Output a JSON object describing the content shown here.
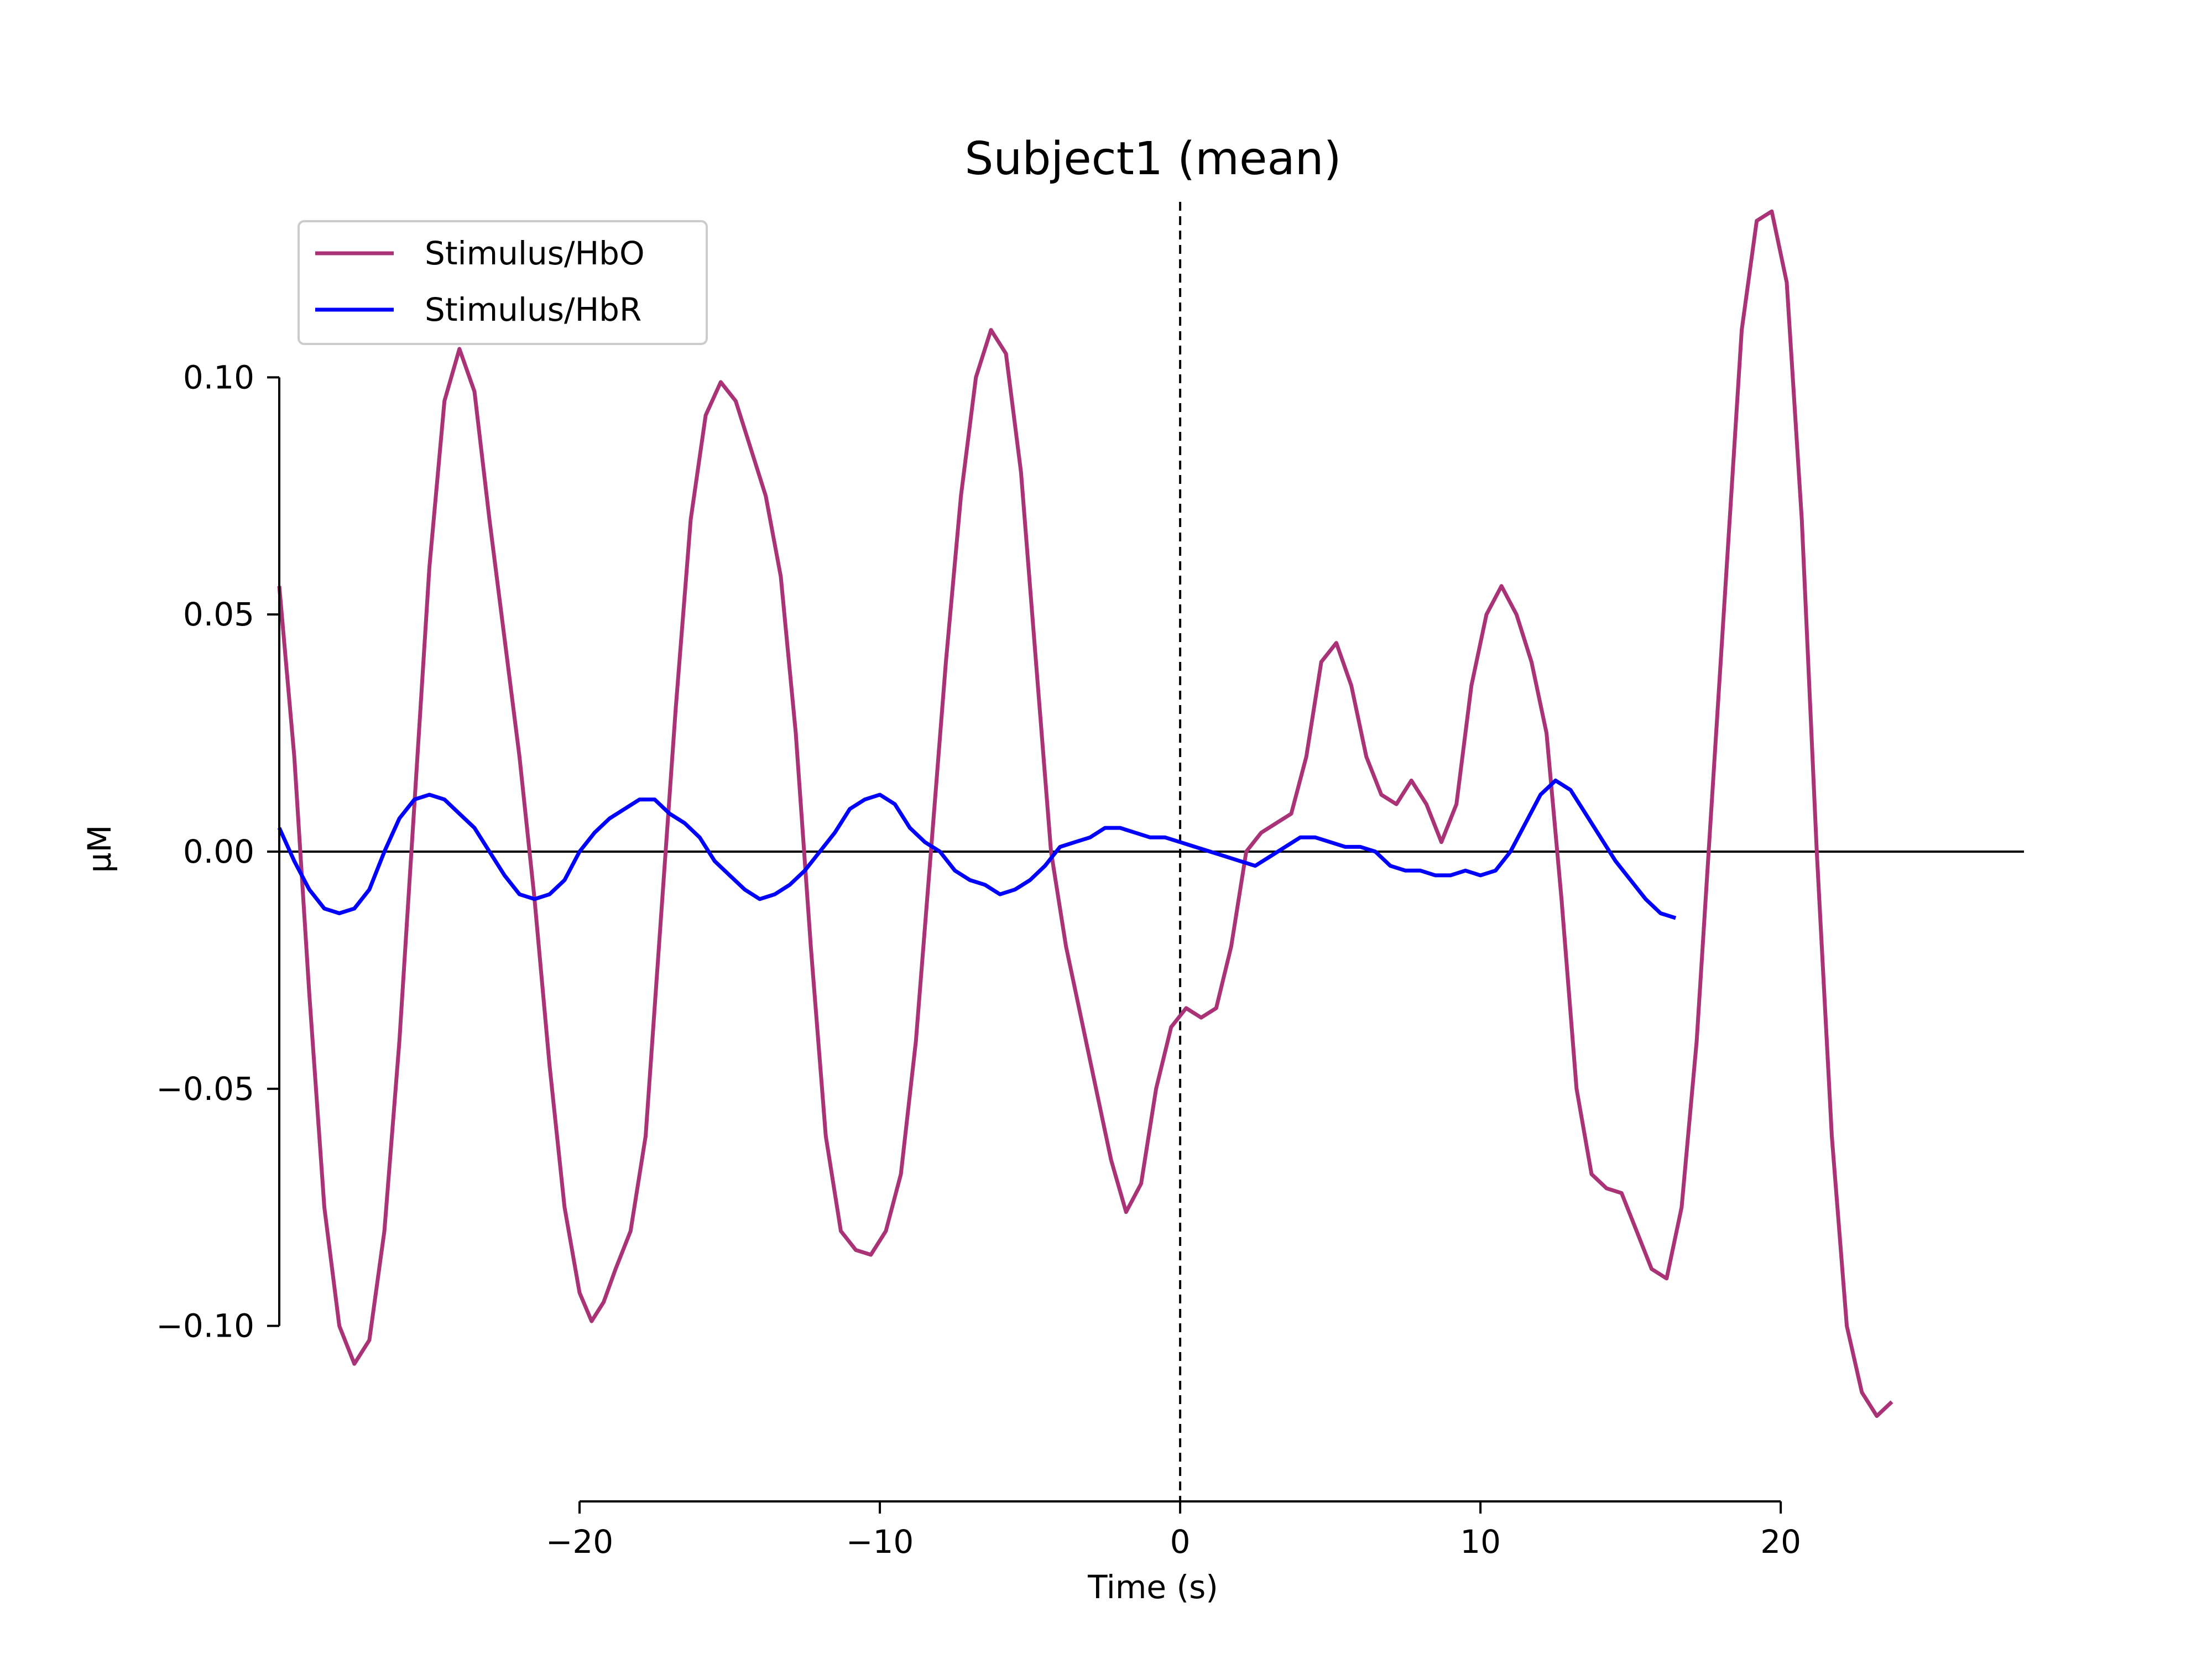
{
  "chart_data": {
    "type": "line",
    "title": "Subject1 (mean)",
    "xlabel": "Time (s)",
    "ylabel": "µM",
    "xlim": [
      -30,
      28.1
    ],
    "ylim": [
      -0.137,
      0.137
    ],
    "x_spine_range": [
      -20,
      20
    ],
    "y_spine_range": [
      -0.1,
      0.1
    ],
    "xticks": [
      {
        "value": -20,
        "label": "−20"
      },
      {
        "value": -10,
        "label": "−10"
      },
      {
        "value": 0,
        "label": "0"
      },
      {
        "value": 10,
        "label": "10"
      },
      {
        "value": 20,
        "label": "20"
      }
    ],
    "yticks": [
      {
        "value": 0.1,
        "label": "0.10"
      },
      {
        "value": 0.05,
        "label": "0.05"
      },
      {
        "value": 0.0,
        "label": "0.00"
      },
      {
        "value": -0.05,
        "label": "−0.05"
      },
      {
        "value": -0.1,
        "label": "−0.10"
      }
    ],
    "grid": false,
    "legend_position": "top-left",
    "reference_lines": {
      "horizontal_zero": true,
      "vertical_dashed_at_x": 0
    },
    "series": [
      {
        "name": "Stimulus/HbO",
        "color": "#aa3377",
        "points": [
          [
            -30.0,
            0.056
          ],
          [
            -29.5,
            0.02
          ],
          [
            -29.0,
            -0.03
          ],
          [
            -28.5,
            -0.075
          ],
          [
            -28.0,
            -0.1
          ],
          [
            -27.5,
            -0.108
          ],
          [
            -27.0,
            -0.103
          ],
          [
            -26.5,
            -0.08
          ],
          [
            -26.0,
            -0.04
          ],
          [
            -25.5,
            0.01
          ],
          [
            -25.0,
            0.06
          ],
          [
            -24.5,
            0.095
          ],
          [
            -24.0,
            0.106
          ],
          [
            -23.5,
            0.097
          ],
          [
            -23.0,
            0.07
          ],
          [
            -22.5,
            0.045
          ],
          [
            -22.0,
            0.02
          ],
          [
            -21.5,
            -0.01
          ],
          [
            -21.0,
            -0.045
          ],
          [
            -20.5,
            -0.075
          ],
          [
            -20.0,
            -0.093
          ],
          [
            -19.6,
            -0.099
          ],
          [
            -19.2,
            -0.095
          ],
          [
            -18.8,
            -0.088
          ],
          [
            -18.3,
            -0.08
          ],
          [
            -17.8,
            -0.06
          ],
          [
            -17.3,
            -0.015
          ],
          [
            -16.8,
            0.03
          ],
          [
            -16.3,
            0.07
          ],
          [
            -15.8,
            0.092
          ],
          [
            -15.3,
            0.099
          ],
          [
            -14.8,
            0.095
          ],
          [
            -14.3,
            0.085
          ],
          [
            -13.8,
            0.075
          ],
          [
            -13.3,
            0.058
          ],
          [
            -12.8,
            0.025
          ],
          [
            -12.3,
            -0.02
          ],
          [
            -11.8,
            -0.06
          ],
          [
            -11.3,
            -0.08
          ],
          [
            -10.8,
            -0.084
          ],
          [
            -10.3,
            -0.085
          ],
          [
            -9.8,
            -0.08
          ],
          [
            -9.3,
            -0.068
          ],
          [
            -8.8,
            -0.04
          ],
          [
            -8.3,
            0.0
          ],
          [
            -7.8,
            0.04
          ],
          [
            -7.3,
            0.075
          ],
          [
            -6.8,
            0.1
          ],
          [
            -6.3,
            0.11
          ],
          [
            -5.8,
            0.105
          ],
          [
            -5.3,
            0.08
          ],
          [
            -4.8,
            0.04
          ],
          [
            -4.3,
            0.0
          ],
          [
            -3.8,
            -0.02
          ],
          [
            -3.3,
            -0.035
          ],
          [
            -2.8,
            -0.05
          ],
          [
            -2.3,
            -0.065
          ],
          [
            -1.8,
            -0.076
          ],
          [
            -1.3,
            -0.07
          ],
          [
            -0.8,
            -0.05
          ],
          [
            -0.3,
            -0.037
          ],
          [
            0.2,
            -0.033
          ],
          [
            0.7,
            -0.035
          ],
          [
            1.2,
            -0.033
          ],
          [
            1.7,
            -0.02
          ],
          [
            2.2,
            0.0
          ],
          [
            2.7,
            0.004
          ],
          [
            3.2,
            0.006
          ],
          [
            3.7,
            0.008
          ],
          [
            4.2,
            0.02
          ],
          [
            4.7,
            0.04
          ],
          [
            5.2,
            0.044
          ],
          [
            5.7,
            0.035
          ],
          [
            6.2,
            0.02
          ],
          [
            6.7,
            0.012
          ],
          [
            7.2,
            0.01
          ],
          [
            7.7,
            0.015
          ],
          [
            8.2,
            0.01
          ],
          [
            8.7,
            0.002
          ],
          [
            9.2,
            0.01
          ],
          [
            9.7,
            0.035
          ],
          [
            10.2,
            0.05
          ],
          [
            10.7,
            0.056
          ],
          [
            11.2,
            0.05
          ],
          [
            11.7,
            0.04
          ],
          [
            12.2,
            0.025
          ],
          [
            12.7,
            -0.01
          ],
          [
            13.2,
            -0.05
          ],
          [
            13.7,
            -0.068
          ],
          [
            14.2,
            -0.071
          ],
          [
            14.7,
            -0.072
          ],
          [
            15.2,
            -0.08
          ],
          [
            15.7,
            -0.088
          ],
          [
            16.2,
            -0.09
          ],
          [
            16.7,
            -0.075
          ],
          [
            17.2,
            -0.04
          ],
          [
            17.7,
            0.01
          ],
          [
            18.2,
            0.06
          ],
          [
            18.7,
            0.11
          ],
          [
            19.2,
            0.133
          ],
          [
            19.7,
            0.135
          ],
          [
            20.2,
            0.12
          ],
          [
            20.7,
            0.07
          ],
          [
            21.2,
            0.0
          ],
          [
            21.7,
            -0.06
          ],
          [
            22.2,
            -0.1
          ],
          [
            22.7,
            -0.114
          ],
          [
            23.2,
            -0.119
          ],
          [
            23.7,
            -0.116
          ]
        ]
      },
      {
        "name": "Stimulus/HbR",
        "color": "#0000ff",
        "points": [
          [
            -30.0,
            0.005
          ],
          [
            -29.5,
            -0.002
          ],
          [
            -29.0,
            -0.008
          ],
          [
            -28.5,
            -0.012
          ],
          [
            -28.0,
            -0.013
          ],
          [
            -27.5,
            -0.012
          ],
          [
            -27.0,
            -0.008
          ],
          [
            -26.5,
            0.0
          ],
          [
            -26.0,
            0.007
          ],
          [
            -25.5,
            0.011
          ],
          [
            -25.0,
            0.012
          ],
          [
            -24.5,
            0.011
          ],
          [
            -24.0,
            0.008
          ],
          [
            -23.5,
            0.005
          ],
          [
            -23.0,
            0.0
          ],
          [
            -22.5,
            -0.005
          ],
          [
            -22.0,
            -0.009
          ],
          [
            -21.5,
            -0.01
          ],
          [
            -21.0,
            -0.009
          ],
          [
            -20.5,
            -0.006
          ],
          [
            -20.0,
            0.0
          ],
          [
            -19.5,
            0.004
          ],
          [
            -19.0,
            0.007
          ],
          [
            -18.5,
            0.009
          ],
          [
            -18.0,
            0.011
          ],
          [
            -17.5,
            0.011
          ],
          [
            -17.0,
            0.008
          ],
          [
            -16.5,
            0.006
          ],
          [
            -16.0,
            0.003
          ],
          [
            -15.5,
            -0.002
          ],
          [
            -15.0,
            -0.005
          ],
          [
            -14.5,
            -0.008
          ],
          [
            -14.0,
            -0.01
          ],
          [
            -13.5,
            -0.009
          ],
          [
            -13.0,
            -0.007
          ],
          [
            -12.5,
            -0.004
          ],
          [
            -12.0,
            0.0
          ],
          [
            -11.5,
            0.004
          ],
          [
            -11.0,
            0.009
          ],
          [
            -10.5,
            0.011
          ],
          [
            -10.0,
            0.012
          ],
          [
            -9.5,
            0.01
          ],
          [
            -9.0,
            0.005
          ],
          [
            -8.5,
            0.002
          ],
          [
            -8.0,
            0.0
          ],
          [
            -7.5,
            -0.004
          ],
          [
            -7.0,
            -0.006
          ],
          [
            -6.5,
            -0.007
          ],
          [
            -6.0,
            -0.009
          ],
          [
            -5.5,
            -0.008
          ],
          [
            -5.0,
            -0.006
          ],
          [
            -4.5,
            -0.003
          ],
          [
            -4.0,
            0.001
          ],
          [
            -3.5,
            0.002
          ],
          [
            -3.0,
            0.003
          ],
          [
            -2.5,
            0.005
          ],
          [
            -2.0,
            0.005
          ],
          [
            -1.5,
            0.004
          ],
          [
            -1.0,
            0.003
          ],
          [
            -0.5,
            0.003
          ],
          [
            0.0,
            0.002
          ],
          [
            0.5,
            0.001
          ],
          [
            1.0,
            0.0
          ],
          [
            1.5,
            -0.001
          ],
          [
            2.0,
            -0.002
          ],
          [
            2.5,
            -0.003
          ],
          [
            3.0,
            -0.001
          ],
          [
            3.5,
            0.001
          ],
          [
            4.0,
            0.003
          ],
          [
            4.5,
            0.003
          ],
          [
            5.0,
            0.002
          ],
          [
            5.5,
            0.001
          ],
          [
            6.0,
            0.001
          ],
          [
            6.5,
            0.0
          ],
          [
            7.0,
            -0.003
          ],
          [
            7.5,
            -0.004
          ],
          [
            8.0,
            -0.004
          ],
          [
            8.5,
            -0.005
          ],
          [
            9.0,
            -0.005
          ],
          [
            9.5,
            -0.004
          ],
          [
            10.0,
            -0.005
          ],
          [
            10.5,
            -0.004
          ],
          [
            11.0,
            0.0
          ],
          [
            11.5,
            0.006
          ],
          [
            12.0,
            0.012
          ],
          [
            12.5,
            0.015
          ],
          [
            13.0,
            0.013
          ],
          [
            13.5,
            0.008
          ],
          [
            14.0,
            0.003
          ],
          [
            14.5,
            -0.002
          ],
          [
            15.0,
            -0.006
          ],
          [
            15.5,
            -0.01
          ],
          [
            16.0,
            -0.013
          ],
          [
            16.5,
            -0.014
          ]
        ]
      }
    ]
  }
}
